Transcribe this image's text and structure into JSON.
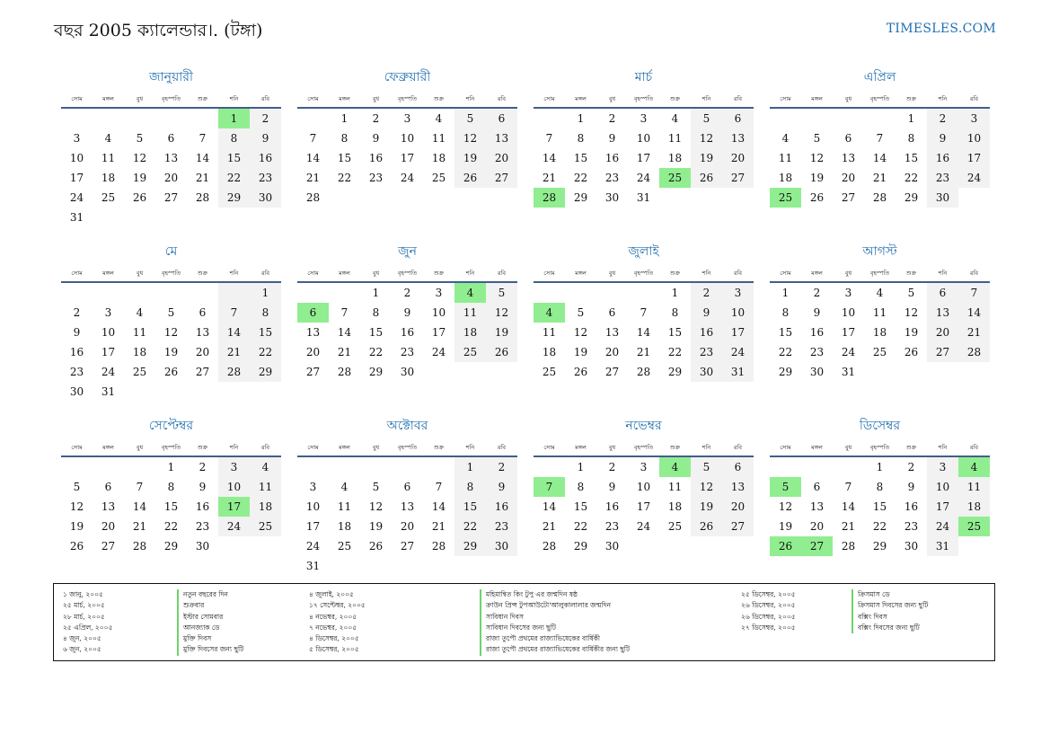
{
  "header": {
    "title": "বছর 2005 ক্যালেন্ডার।. (টঙ্গা)",
    "site": "TIMESLES.COM"
  },
  "colors": {
    "accent": "#1f6fb0",
    "weekend": "#f2f2f2",
    "holiday": "#90ee90",
    "rule": "#3f5f8f"
  },
  "weekdays": [
    "সোম",
    "মঙ্গল",
    "বুধ",
    "বৃহস্পতি",
    "শুক্র",
    "শনি",
    "রবি"
  ],
  "months": [
    {
      "name": "জানুয়ারী",
      "offset": 5,
      "days": 31,
      "highlights": [
        1
      ]
    },
    {
      "name": "ফেব্রুয়ারী",
      "offset": 1,
      "days": 28,
      "highlights": []
    },
    {
      "name": "মার্চ",
      "offset": 1,
      "days": 31,
      "highlights": [
        25,
        28
      ]
    },
    {
      "name": "এপ্রিল",
      "offset": 4,
      "days": 30,
      "highlights": [
        25
      ]
    },
    {
      "name": "মে",
      "offset": 6,
      "days": 31,
      "highlights": []
    },
    {
      "name": "জুন",
      "offset": 2,
      "days": 30,
      "highlights": [
        4,
        6
      ]
    },
    {
      "name": "জুলাই",
      "offset": 4,
      "days": 31,
      "highlights": [
        4
      ]
    },
    {
      "name": "আগস্ট",
      "offset": 0,
      "days": 31,
      "highlights": []
    },
    {
      "name": "সেপ্টেম্বর",
      "offset": 3,
      "days": 30,
      "highlights": [
        17
      ]
    },
    {
      "name": "অক্টোবর",
      "offset": 5,
      "days": 31,
      "highlights": []
    },
    {
      "name": "নভেম্বর",
      "offset": 1,
      "days": 30,
      "highlights": [
        4,
        7
      ]
    },
    {
      "name": "ডিসেম্বর",
      "offset": 3,
      "days": 31,
      "highlights": [
        4,
        5,
        25,
        26,
        27
      ]
    }
  ],
  "holidays_left": [
    {
      "date": "১ জানু, ২০০৫",
      "name": "নতুন বছরের দিন"
    },
    {
      "date": "২৫ মার্চ, ২০০৫",
      "name": "শুক্রবার"
    },
    {
      "date": "২৮ মার্চ, ২০০৫",
      "name": "ইস্টার সোমবার"
    },
    {
      "date": "২৫ এপ্রিল, ২০০৫",
      "name": "আনজ্যাক ডে"
    },
    {
      "date": "৪ জুন, ২০০৫",
      "name": "মুক্তি দিবস"
    },
    {
      "date": "৬ জুন, ২০০৫",
      "name": "মুক্তি দিবসের জন্য ছুটি"
    }
  ],
  "holidays_mid": [
    {
      "date": "৪ জুলাই, ২০০৫",
      "name": "মহিমান্বিত কিং টুপু এর জন্মদিন ষষ্ঠ"
    },
    {
      "date": "১৭ সেপ্টেম্বর, ২০০৫",
      "name": "ক্রাউন প্রিন্স টুপআউটো'আলুকালালার জন্মদিন"
    },
    {
      "date": "৪ নভেম্বর, ২০০৫",
      "name": "সাবিধান দিবস"
    },
    {
      "date": "৭ নভেম্বর, ২০০৫",
      "name": "সাবিধান দিবসের জন্য ছুটি"
    },
    {
      "date": "৪ ডিসেম্বর, ২০০৫",
      "name": "রাজা তুপৌ প্রথমের রাজ্যাভিষেকের বার্ষিকী"
    },
    {
      "date": "৫ ডিসেম্বর, ২০০৫",
      "name": "রাজা তুপৌ প্রথমের রাজ্যাভিষেকের বার্ষিকীর জন্য ছুটি"
    }
  ],
  "holidays_right": [
    {
      "date": "২৫ ডিসেম্বর, ২০০৫",
      "name": "ক্রিসমাস ডে"
    },
    {
      "date": "২৬ ডিসেম্বর, ২০০৫",
      "name": "ক্রিসমাস দিবসের জন্য ছুটি"
    },
    {
      "date": "২৬ ডিসেম্বর, ২০০৫",
      "name": "বক্সিং দিবস"
    },
    {
      "date": "২৭ ডিসেম্বর, ২০০৫",
      "name": "বক্সিং দিবসের জন্য ছুটি"
    }
  ]
}
